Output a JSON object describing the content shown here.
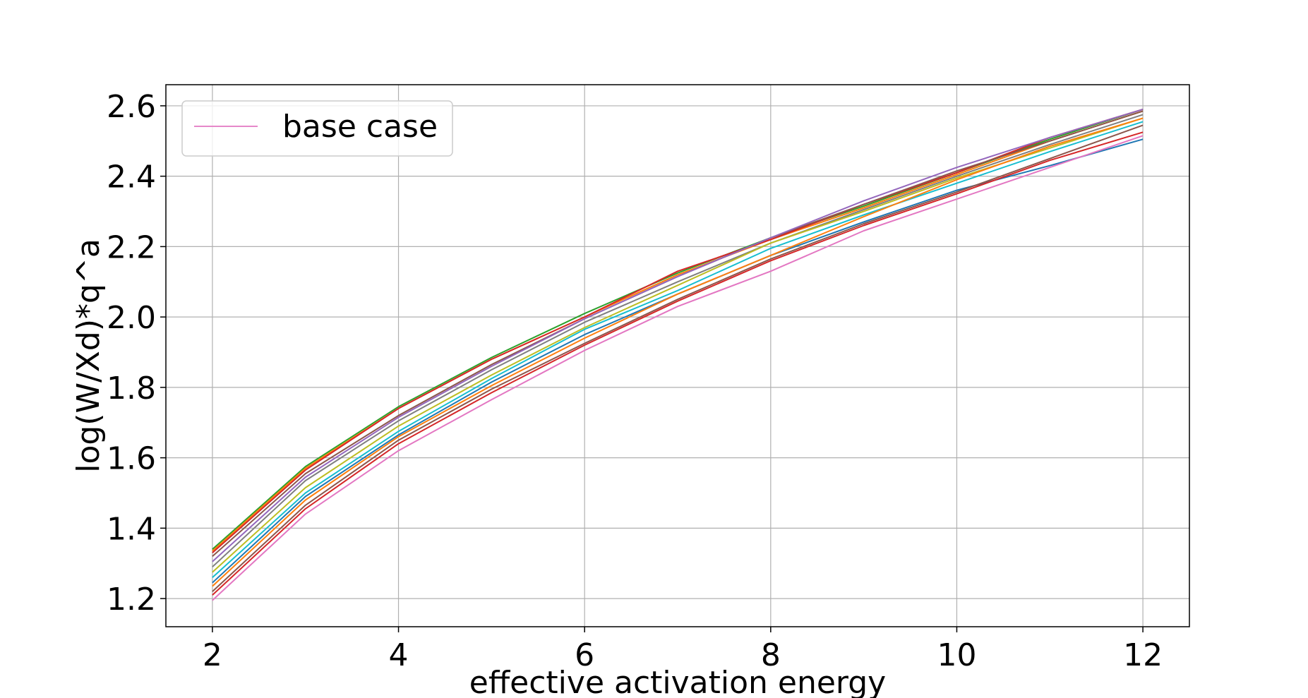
{
  "chart_data": {
    "type": "line",
    "xlabel": "effective activation energy",
    "ylabel": "log(W/Xd)*q^a",
    "xlim": [
      1.5,
      12.5
    ],
    "ylim": [
      1.12,
      2.66
    ],
    "xticks": [
      2,
      4,
      6,
      8,
      10,
      12
    ],
    "yticks": [
      1.2,
      1.4,
      1.6,
      1.8,
      2.0,
      2.2,
      2.4,
      2.6
    ],
    "grid": true,
    "legend": {
      "placement": "top-left",
      "entries": [
        {
          "label": "base case",
          "color": "#e377c2"
        }
      ]
    },
    "x": [
      2,
      3,
      4,
      5,
      6,
      7,
      8,
      9,
      10,
      11,
      12
    ],
    "series": [
      {
        "color": "#2ca02c",
        "values": [
          1.34,
          1.575,
          1.745,
          1.885,
          2.01,
          2.125,
          2.225,
          2.315,
          2.41,
          2.505,
          2.59
        ]
      },
      {
        "color": "#ff7f0e",
        "values": [
          1.335,
          1.57,
          1.74,
          1.88,
          2.0,
          2.12,
          2.22,
          2.31,
          2.405,
          2.5,
          2.585
        ]
      },
      {
        "color": "#d62728",
        "values": [
          1.33,
          1.565,
          1.74,
          1.88,
          2.0,
          2.13,
          2.22,
          2.32,
          2.41,
          2.51,
          2.59
        ]
      },
      {
        "color": "#8c564b",
        "values": [
          1.32,
          1.555,
          1.72,
          1.865,
          1.995,
          2.115,
          2.225,
          2.32,
          2.415,
          2.5,
          2.585
        ]
      },
      {
        "color": "#9467bd",
        "values": [
          1.305,
          1.545,
          1.715,
          1.86,
          1.995,
          2.115,
          2.225,
          2.33,
          2.425,
          2.51,
          2.59
        ]
      },
      {
        "color": "#7f7f7f",
        "values": [
          1.29,
          1.535,
          1.705,
          1.85,
          1.985,
          2.1,
          2.21,
          2.305,
          2.4,
          2.49,
          2.575
        ]
      },
      {
        "color": "#bcbd22",
        "values": [
          1.275,
          1.515,
          1.69,
          1.835,
          1.97,
          2.09,
          2.21,
          2.3,
          2.395,
          2.48,
          2.565
        ]
      },
      {
        "color": "#17becf",
        "values": [
          1.26,
          1.5,
          1.675,
          1.825,
          1.965,
          2.075,
          2.195,
          2.29,
          2.38,
          2.47,
          2.555
        ]
      },
      {
        "color": "#1f77b4",
        "values": [
          1.245,
          1.49,
          1.665,
          1.815,
          1.95,
          2.065,
          2.175,
          2.27,
          2.36,
          2.43,
          2.505
        ]
      },
      {
        "color": "#ff7f0e",
        "values": [
          1.235,
          1.48,
          1.66,
          1.805,
          1.94,
          2.065,
          2.175,
          2.285,
          2.39,
          2.485,
          2.565
        ]
      },
      {
        "color": "#8c564b",
        "values": [
          1.22,
          1.465,
          1.65,
          1.795,
          1.925,
          2.05,
          2.165,
          2.265,
          2.355,
          2.45,
          2.545
        ]
      },
      {
        "color": "#d62728",
        "values": [
          1.21,
          1.455,
          1.64,
          1.785,
          1.92,
          2.045,
          2.16,
          2.26,
          2.35,
          2.445,
          2.525
        ]
      },
      {
        "color": "#e377c2",
        "values": [
          1.195,
          1.44,
          1.62,
          1.765,
          1.905,
          2.03,
          2.13,
          2.245,
          2.335,
          2.425,
          2.515
        ]
      }
    ]
  }
}
